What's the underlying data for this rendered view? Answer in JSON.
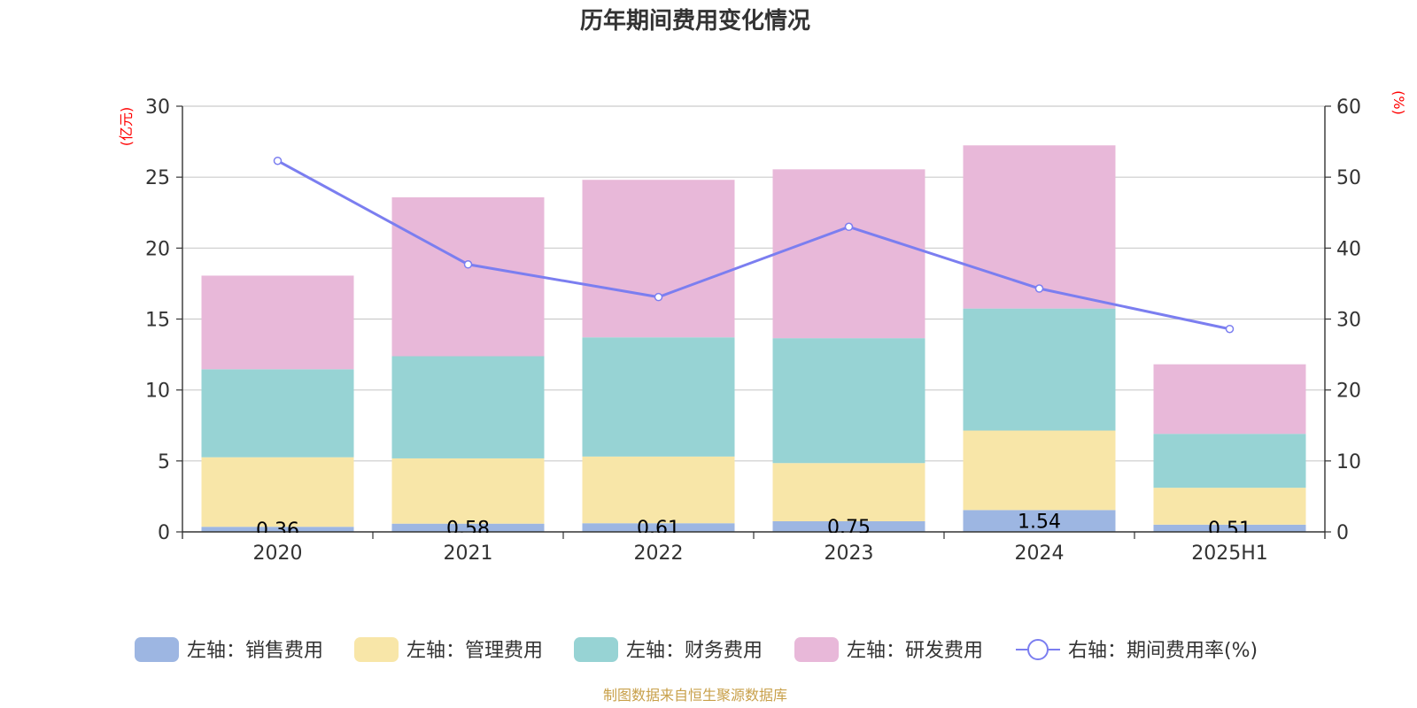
{
  "chart_data": {
    "type": "bar",
    "stacked": true,
    "title": "历年期间费用变化情况",
    "categories": [
      "2020",
      "2021",
      "2022",
      "2023",
      "2024",
      "2025H1"
    ],
    "y_left": {
      "unit": "(亿元)",
      "range": [
        0,
        30
      ],
      "ticks": [
        0,
        5,
        10,
        15,
        20,
        25,
        30
      ]
    },
    "y_right": {
      "unit": "(%)",
      "range": [
        0,
        60
      ],
      "ticks": [
        0,
        10,
        20,
        30,
        40,
        50,
        60
      ]
    },
    "series": [
      {
        "name": "左轴：销售费用",
        "axis": "left",
        "color": "#9db6e2",
        "values": [
          0.36,
          0.58,
          0.61,
          0.75,
          1.54,
          0.51
        ],
        "labels": [
          "0.36",
          "0.58",
          "0.61",
          "0.75",
          "1.54",
          "0.51"
        ]
      },
      {
        "name": "左轴：管理费用",
        "axis": "left",
        "color": "#f8e6a8",
        "values": [
          4.9,
          4.6,
          4.7,
          4.1,
          5.6,
          2.6
        ]
      },
      {
        "name": "左轴：财务费用",
        "axis": "left",
        "color": "#97d3d4",
        "values": [
          6.2,
          7.2,
          8.4,
          8.8,
          8.6,
          3.8
        ]
      },
      {
        "name": "左轴：研发费用",
        "axis": "left",
        "color": "#e8b8d9",
        "values": [
          6.6,
          11.2,
          11.1,
          11.9,
          11.5,
          4.9
        ]
      },
      {
        "name": "右轴：期间费用率(%)",
        "axis": "right",
        "type": "line",
        "color": "#7b7ef0",
        "values": [
          52.3,
          37.7,
          33.1,
          43.0,
          34.3,
          28.6
        ]
      }
    ],
    "grid": true,
    "legend_position": "bottom"
  },
  "source_note": "制图数据来自恒生聚源数据库"
}
